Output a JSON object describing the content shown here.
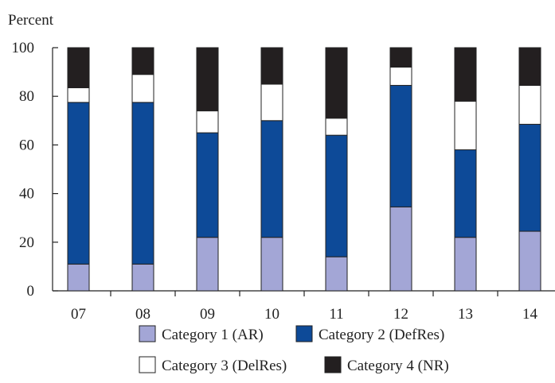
{
  "chart_data": {
    "type": "bar",
    "stacked": true,
    "ylabel": "Percent",
    "xlabel": "",
    "ylim": [
      0,
      100
    ],
    "yticks": [
      "0",
      "20",
      "40",
      "60",
      "80",
      "100"
    ],
    "categories": [
      "07",
      "08",
      "09",
      "10",
      "11",
      "12",
      "13",
      "14"
    ],
    "series": [
      {
        "name": "Category 1 (AR)",
        "color": "#a3a6d6",
        "values": [
          11,
          11,
          22,
          22,
          14,
          34.5,
          22,
          24.5
        ]
      },
      {
        "name": "Category 2 (DefRes)",
        "color": "#0d4a98",
        "values": [
          66.5,
          66.5,
          43,
          48,
          50,
          50,
          36,
          44
        ]
      },
      {
        "name": "Category 3 (DelRes)",
        "color": "#ffffff",
        "values": [
          6,
          11.5,
          9,
          15,
          7,
          7.5,
          20,
          16
        ]
      },
      {
        "name": "Category 4 (NR)",
        "color": "#231f20",
        "values": [
          16.5,
          11,
          26,
          15,
          29,
          8,
          22,
          15.5
        ]
      }
    ],
    "grid": false,
    "legend": "bottom"
  }
}
